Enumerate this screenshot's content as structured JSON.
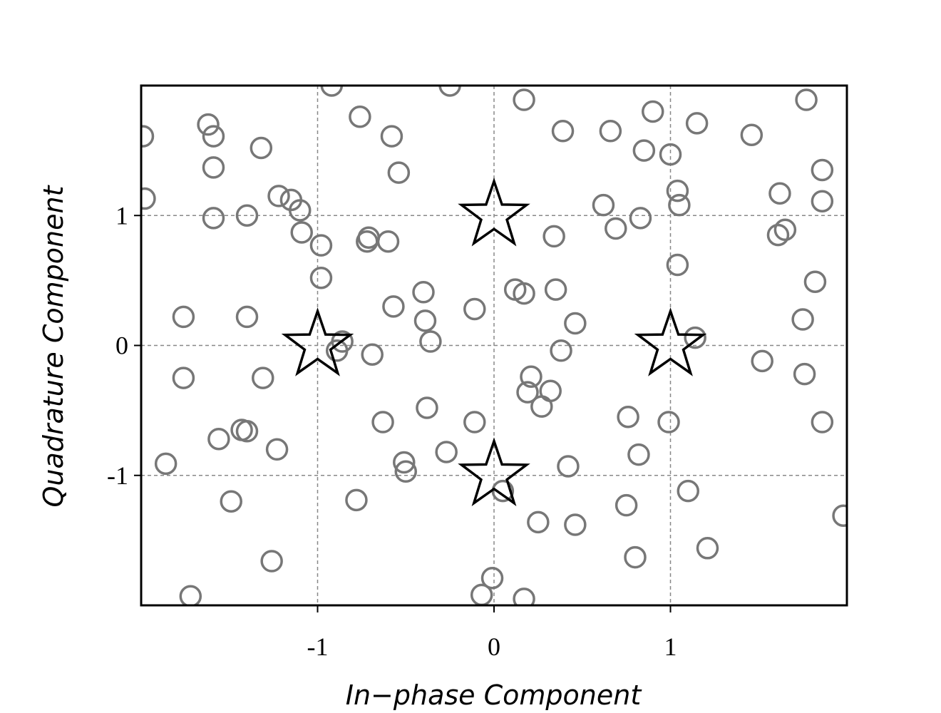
{
  "chart_data": {
    "type": "scatter",
    "xlabel": "In−phase Component",
    "ylabel": "Quadrature Component",
    "xlim": [
      -2.0,
      2.0
    ],
    "ylim": [
      -2.0,
      2.0
    ],
    "x_ticks": [
      -1,
      0,
      1
    ],
    "x_tick_labels": [
      "-1",
      "0",
      "1"
    ],
    "y_ticks": [
      -1,
      0,
      1
    ],
    "y_tick_labels": [
      "-1",
      "0",
      "1"
    ],
    "grid": true,
    "colors": {
      "received": "#777777",
      "constellation": "#000000",
      "grid": "#888888"
    },
    "series": [
      {
        "marker": "open-circle",
        "points": [
          [
            -1.99,
            1.61
          ],
          [
            -1.98,
            1.13
          ],
          [
            -0.92,
            2.0
          ],
          [
            -0.25,
            2.0
          ],
          [
            0.17,
            1.89
          ],
          [
            1.77,
            1.89
          ],
          [
            -1.62,
            1.7
          ],
          [
            -1.59,
            1.61
          ],
          [
            -0.76,
            1.76
          ],
          [
            -0.58,
            1.61
          ],
          [
            0.39,
            1.65
          ],
          [
            0.66,
            1.65
          ],
          [
            0.9,
            1.8
          ],
          [
            1.15,
            1.71
          ],
          [
            1.46,
            1.62
          ],
          [
            -1.32,
            1.52
          ],
          [
            0.85,
            1.5
          ],
          [
            1.0,
            1.47
          ],
          [
            -1.59,
            1.37
          ],
          [
            -0.54,
            1.33
          ],
          [
            1.86,
            1.35
          ],
          [
            -1.22,
            1.15
          ],
          [
            -1.15,
            1.12
          ],
          [
            -1.1,
            1.04
          ],
          [
            1.04,
            1.19
          ],
          [
            1.62,
            1.17
          ],
          [
            1.86,
            1.11
          ],
          [
            1.05,
            1.08
          ],
          [
            0.62,
            1.08
          ],
          [
            -1.59,
            0.98
          ],
          [
            -1.4,
            1.0
          ],
          [
            0.83,
            0.98
          ],
          [
            -1.09,
            0.87
          ],
          [
            0.69,
            0.9
          ],
          [
            0.34,
            0.84
          ],
          [
            1.61,
            0.85
          ],
          [
            1.65,
            0.89
          ],
          [
            -0.72,
            0.8
          ],
          [
            -0.71,
            0.83
          ],
          [
            -0.6,
            0.8
          ],
          [
            -0.98,
            0.77
          ],
          [
            -0.98,
            0.52
          ],
          [
            1.04,
            0.62
          ],
          [
            1.82,
            0.49
          ],
          [
            0.12,
            0.43
          ],
          [
            0.17,
            0.4
          ],
          [
            0.35,
            0.43
          ],
          [
            -0.4,
            0.41
          ],
          [
            -0.57,
            0.3
          ],
          [
            -0.11,
            0.28
          ],
          [
            -1.76,
            0.22
          ],
          [
            -1.4,
            0.22
          ],
          [
            -0.39,
            0.19
          ],
          [
            0.46,
            0.17
          ],
          [
            1.75,
            0.2
          ],
          [
            -0.86,
            0.03
          ],
          [
            -0.36,
            0.03
          ],
          [
            1.14,
            0.06
          ],
          [
            -0.89,
            -0.04
          ],
          [
            -0.69,
            -0.07
          ],
          [
            0.38,
            -0.04
          ],
          [
            -1.76,
            -0.25
          ],
          [
            -1.31,
            -0.25
          ],
          [
            0.21,
            -0.24
          ],
          [
            1.52,
            -0.12
          ],
          [
            1.76,
            -0.22
          ],
          [
            0.19,
            -0.36
          ],
          [
            0.32,
            -0.35
          ],
          [
            0.27,
            -0.47
          ],
          [
            -0.38,
            -0.48
          ],
          [
            -0.63,
            -0.59
          ],
          [
            -0.11,
            -0.59
          ],
          [
            0.76,
            -0.55
          ],
          [
            0.99,
            -0.59
          ],
          [
            1.86,
            -0.59
          ],
          [
            -1.43,
            -0.65
          ],
          [
            -1.4,
            -0.66
          ],
          [
            -1.56,
            -0.72
          ],
          [
            -1.23,
            -0.8
          ],
          [
            -1.86,
            -0.91
          ],
          [
            -0.51,
            -0.9
          ],
          [
            -0.5,
            -0.97
          ],
          [
            -0.27,
            -0.82
          ],
          [
            0.82,
            -0.84
          ],
          [
            0.42,
            -0.93
          ],
          [
            0.05,
            -1.12
          ],
          [
            1.1,
            -1.12
          ],
          [
            -1.49,
            -1.2
          ],
          [
            -0.78,
            -1.19
          ],
          [
            0.75,
            -1.23
          ],
          [
            0.25,
            -1.36
          ],
          [
            0.46,
            -1.38
          ],
          [
            1.98,
            -1.31
          ],
          [
            -1.26,
            -1.66
          ],
          [
            0.8,
            -1.63
          ],
          [
            1.21,
            -1.56
          ],
          [
            -0.01,
            -1.79
          ],
          [
            -1.72,
            -1.93
          ],
          [
            -0.07,
            -1.92
          ],
          [
            0.17,
            -1.95
          ]
        ]
      },
      {
        "marker": "star",
        "points": [
          [
            0,
            1
          ],
          [
            -1,
            0
          ],
          [
            1,
            0
          ],
          [
            0,
            -1
          ]
        ]
      }
    ]
  }
}
